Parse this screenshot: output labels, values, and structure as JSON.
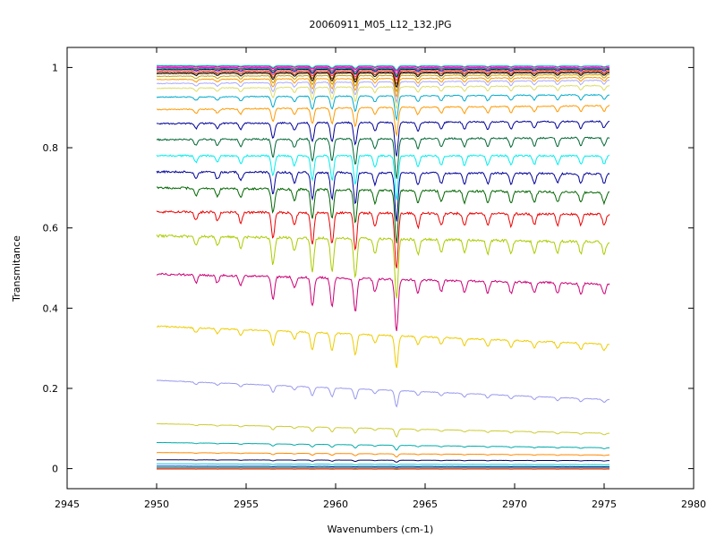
{
  "chart_data": {
    "type": "line",
    "title": "20060911_M05_L12_132.JPG",
    "xlabel": "Wavenumbers (cm-1)",
    "ylabel": "Transmitance",
    "xlim": [
      2945,
      2980
    ],
    "ylim": [
      -0.05,
      1.05
    ],
    "x_range": [
      2950,
      2975.3
    ],
    "xticks": [
      2945,
      2950,
      2955,
      2960,
      2965,
      2970,
      2975,
      2980
    ],
    "yticks": [
      0,
      0.2,
      0.4,
      0.6,
      0.8,
      1
    ],
    "ytick_labels": [
      "0",
      "0.2",
      "0.4",
      "0.6",
      "0.8",
      "1"
    ],
    "grid": false,
    "legend": "none",
    "absorption_lines": [
      {
        "x": 2952.2,
        "depth": 0.15
      },
      {
        "x": 2953.4,
        "depth": 0.15
      },
      {
        "x": 2954.7,
        "depth": 0.18
      },
      {
        "x": 2956.5,
        "depth": 0.45
      },
      {
        "x": 2957.7,
        "depth": 0.22
      },
      {
        "x": 2958.7,
        "depth": 0.55
      },
      {
        "x": 2959.8,
        "depth": 0.55
      },
      {
        "x": 2961.1,
        "depth": 0.65
      },
      {
        "x": 2962.2,
        "depth": 0.25
      },
      {
        "x": 2963.4,
        "depth": 1.0
      },
      {
        "x": 2964.6,
        "depth": 0.25
      },
      {
        "x": 2965.9,
        "depth": 0.22
      },
      {
        "x": 2967.2,
        "depth": 0.22
      },
      {
        "x": 2968.5,
        "depth": 0.22
      },
      {
        "x": 2969.8,
        "depth": 0.22
      },
      {
        "x": 2971.1,
        "depth": 0.2
      },
      {
        "x": 2972.4,
        "depth": 0.2
      },
      {
        "x": 2973.7,
        "depth": 0.2
      },
      {
        "x": 2975.0,
        "depth": 0.2
      }
    ],
    "series": [
      {
        "color": "#00cccc",
        "start": 1.005,
        "end": 1.004,
        "line_scale": 0.01
      },
      {
        "color": "#cc0066",
        "start": 1.003,
        "end": 1.003,
        "line_scale": 0.012
      },
      {
        "color": "#ff00ff",
        "start": 1.0,
        "end": 1.0,
        "line_scale": 0.015
      },
      {
        "color": "#00aa00",
        "start": 0.998,
        "end": 0.998,
        "line_scale": 0.018
      },
      {
        "color": "#0000cc",
        "start": 0.995,
        "end": 0.996,
        "line_scale": 0.02
      },
      {
        "color": "#ff3333",
        "start": 0.992,
        "end": 0.993,
        "line_scale": 0.025
      },
      {
        "color": "#993300",
        "start": 0.988,
        "end": 0.99,
        "line_scale": 0.03
      },
      {
        "color": "#000000",
        "start": 0.985,
        "end": 0.987,
        "line_scale": 0.035
      },
      {
        "color": "#cc9900",
        "start": 0.978,
        "end": 0.982,
        "line_scale": 0.04
      },
      {
        "color": "#ff9900",
        "start": 0.97,
        "end": 0.975,
        "line_scale": 0.045
      },
      {
        "color": "#aaaaff",
        "start": 0.96,
        "end": 0.968,
        "line_scale": 0.05
      },
      {
        "color": "#dddd66",
        "start": 0.948,
        "end": 0.955,
        "line_scale": 0.055
      },
      {
        "color": "#00aacc",
        "start": 0.926,
        "end": 0.932,
        "line_scale": 0.06
      },
      {
        "color": "#ff9900",
        "start": 0.895,
        "end": 0.905,
        "line_scale": 0.07
      },
      {
        "color": "#000099",
        "start": 0.86,
        "end": 0.866,
        "line_scale": 0.085
      },
      {
        "color": "#006633",
        "start": 0.82,
        "end": 0.825,
        "line_scale": 0.1
      },
      {
        "color": "#00eeee",
        "start": 0.78,
        "end": 0.78,
        "line_scale": 0.11
      },
      {
        "color": "#000099",
        "start": 0.74,
        "end": 0.735,
        "line_scale": 0.12
      },
      {
        "color": "#006600",
        "start": 0.7,
        "end": 0.688,
        "line_scale": 0.13
      },
      {
        "color": "#ee0000",
        "start": 0.64,
        "end": 0.634,
        "line_scale": 0.14
      },
      {
        "color": "#aacc00",
        "start": 0.58,
        "end": 0.565,
        "line_scale": 0.15
      },
      {
        "color": "#cc0077",
        "start": 0.485,
        "end": 0.46,
        "line_scale": 0.13
      },
      {
        "color": "#eecc00",
        "start": 0.355,
        "end": 0.31,
        "line_scale": 0.08
      },
      {
        "color": "#9999ee",
        "start": 0.22,
        "end": 0.172,
        "line_scale": 0.04
      },
      {
        "color": "#cccc33",
        "start": 0.112,
        "end": 0.088,
        "line_scale": 0.02
      },
      {
        "color": "#00aaaa",
        "start": 0.065,
        "end": 0.052,
        "line_scale": 0.012
      },
      {
        "color": "#ff8800",
        "start": 0.04,
        "end": 0.034,
        "line_scale": 0.008
      },
      {
        "color": "#000066",
        "start": 0.022,
        "end": 0.02,
        "line_scale": 0.005
      },
      {
        "color": "#00cccc",
        "start": 0.012,
        "end": 0.01,
        "line_scale": 0.003
      },
      {
        "color": "#0000ff",
        "start": 0.006,
        "end": 0.005,
        "line_scale": 0.002
      },
      {
        "color": "#00aa00",
        "start": 0.002,
        "end": 0.002,
        "line_scale": 0.001
      },
      {
        "color": "#ff0000",
        "start": -0.001,
        "end": -0.001,
        "line_scale": 0.0005
      }
    ]
  }
}
